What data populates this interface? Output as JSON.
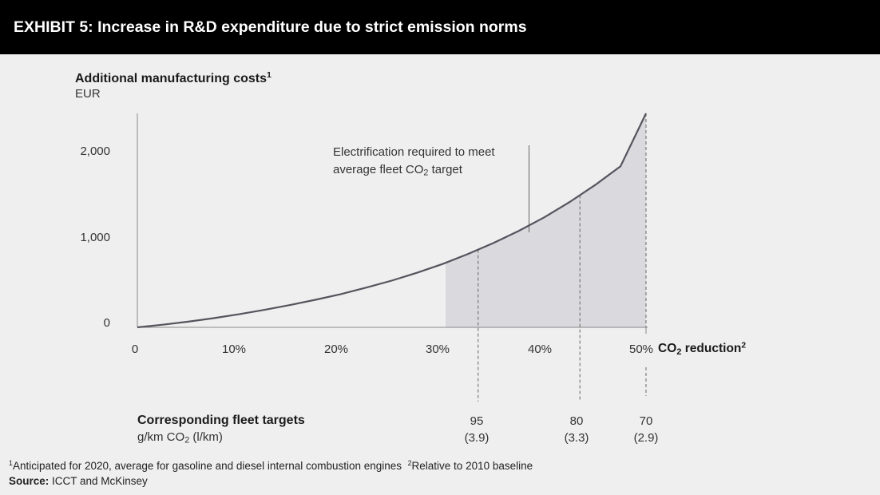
{
  "header": {
    "title": "EXHIBIT 5: Increase in R&D expenditure due to strict emission norms"
  },
  "chart_data": {
    "type": "area",
    "ylabel": "Additional manufacturing costs",
    "ylabel_footnote": "1",
    "yunit": "EUR",
    "ylim": [
      0,
      2450
    ],
    "yticks": [
      0,
      1000,
      2000
    ],
    "ytick_labels": [
      "0",
      "1,000",
      "2,000"
    ],
    "xlabel_pre": "CO",
    "xlabel_sub": "2",
    "xlabel_post": " reduction",
    "xlabel_footnote": "2",
    "xlim": [
      0,
      50
    ],
    "xticks": [
      0,
      10,
      20,
      30,
      40,
      50
    ],
    "xtick_labels": [
      "0",
      "10%",
      "20%",
      "30%",
      "40%",
      "50%"
    ],
    "x": [
      0,
      2.5,
      5,
      7.5,
      10,
      12.5,
      15,
      17.5,
      20,
      22.5,
      25,
      27.5,
      30,
      32.5,
      35,
      37.5,
      40,
      42.5,
      45,
      47.5,
      50
    ],
    "y": [
      0,
      30,
      65,
      105,
      150,
      200,
      255,
      315,
      380,
      455,
      535,
      625,
      725,
      840,
      965,
      1105,
      1260,
      1435,
      1630,
      1845,
      2450
    ],
    "shaded_region_start": 30.3,
    "reference_lines_x": [
      33.5,
      43.5,
      50
    ],
    "annotation_line1": "Electrification required  to meet",
    "annotation_line2_pre": "average fleet  CO",
    "annotation_line2_sub": "2",
    "annotation_line2_post": " target",
    "annotation_pointer_x": 38.5,
    "colors": {
      "line": "#55545e",
      "area": "#d9d9de",
      "axis": "#888888",
      "background": "#efefef"
    }
  },
  "fleet_targets": {
    "title": "Corresponding fleet targets",
    "unit_pre": "g/km CO",
    "unit_sub": "2",
    "unit_post": " (l/km)",
    "items": [
      {
        "x": 33.5,
        "value": "95",
        "sub": "(3.9)"
      },
      {
        "x": 43.5,
        "value": "80",
        "sub": "(3.3)"
      },
      {
        "x": 50,
        "value": "70",
        "sub": "(2.9)"
      }
    ]
  },
  "footnotes": {
    "n1_mark": "1",
    "n1_text": "Anticipated for 2020, average for gasoline and diesel internal combustion engines",
    "n2_mark": "2",
    "n2_text": "Relative to 2010 baseline",
    "source_label": "Source:",
    "source_text": " ICCT and McKinsey"
  }
}
